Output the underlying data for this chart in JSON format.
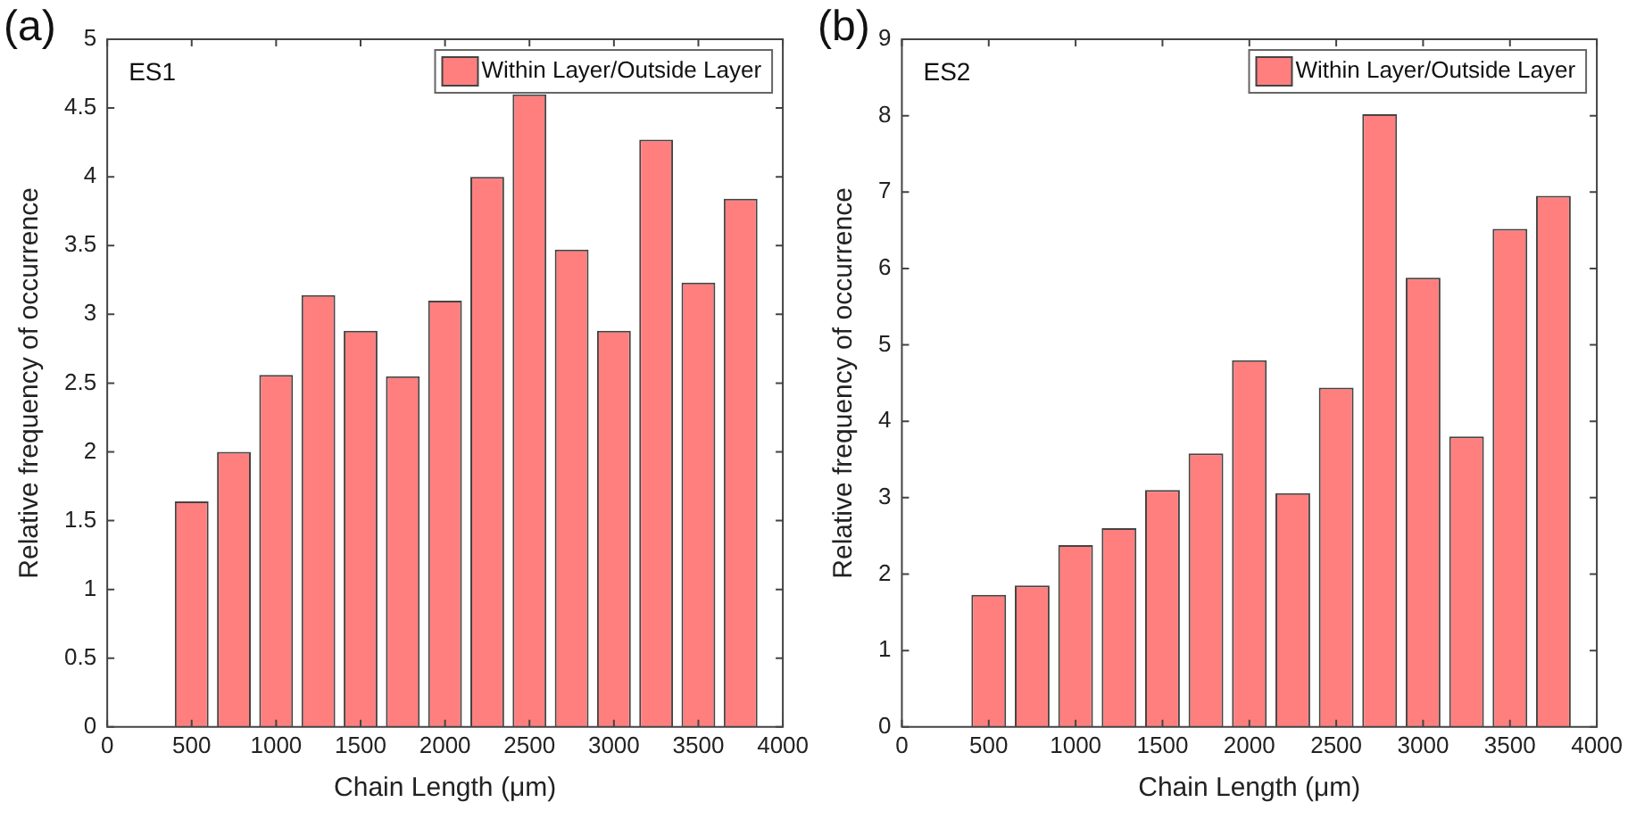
{
  "chart_data": [
    {
      "type": "bar",
      "title": "(a)",
      "xlabel": "Chain Length (μm)",
      "ylabel": "Relative frequency of occurrence",
      "annotations": [
        "ES1"
      ],
      "x": [
        500,
        750,
        1000,
        1250,
        1500,
        1750,
        2000,
        2250,
        2500,
        2750,
        3000,
        3250,
        3500,
        3750
      ],
      "series": [
        {
          "name": "Within Layer/Outside Layer",
          "color": "#ff7f7f",
          "values": [
            1.64,
            2.0,
            2.56,
            3.14,
            2.88,
            2.55,
            3.1,
            4.0,
            4.6,
            3.47,
            2.88,
            4.27,
            3.23,
            3.84
          ]
        }
      ],
      "xlim": [
        0,
        4000
      ],
      "xticks": [
        0,
        500,
        1000,
        1500,
        2000,
        2500,
        3000,
        3500,
        4000
      ],
      "ylim": [
        0,
        5
      ],
      "yticks": [
        0,
        0.5,
        1,
        1.5,
        2,
        2.5,
        3,
        3.5,
        4,
        4.5,
        5
      ],
      "grid": false,
      "legend": "top right"
    },
    {
      "type": "bar",
      "title": "(b)",
      "xlabel": "Chain Length (μm)",
      "ylabel": "Relative frequency of occurrence",
      "annotations": [
        "ES2"
      ],
      "x": [
        500,
        750,
        1000,
        1250,
        1500,
        1750,
        2000,
        2250,
        2500,
        2750,
        3000,
        3250,
        3500,
        3750
      ],
      "series": [
        {
          "name": "Within Layer/Outside Layer",
          "color": "#ff7f7f",
          "values": [
            1.73,
            1.85,
            2.38,
            2.6,
            3.1,
            3.58,
            4.8,
            3.06,
            4.44,
            8.02,
            5.88,
            3.8,
            6.52,
            6.95
          ]
        }
      ],
      "xlim": [
        0,
        4000
      ],
      "xticks": [
        0,
        500,
        1000,
        1500,
        2000,
        2500,
        3000,
        3500,
        4000
      ],
      "ylim": [
        0,
        9
      ],
      "yticks": [
        0,
        1,
        2,
        3,
        4,
        5,
        6,
        7,
        8,
        9
      ],
      "grid": false,
      "legend": "top right"
    }
  ]
}
